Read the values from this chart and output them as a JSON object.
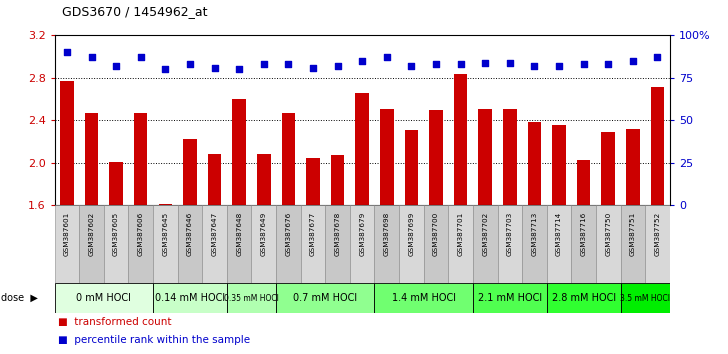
{
  "title": "GDS3670 / 1454962_at",
  "samples": [
    "GSM387601",
    "GSM387602",
    "GSM387605",
    "GSM387606",
    "GSM387645",
    "GSM387646",
    "GSM387647",
    "GSM387648",
    "GSM387649",
    "GSM387676",
    "GSM387677",
    "GSM387678",
    "GSM387679",
    "GSM387698",
    "GSM387699",
    "GSM387700",
    "GSM387701",
    "GSM387702",
    "GSM387703",
    "GSM387713",
    "GSM387714",
    "GSM387716",
    "GSM387750",
    "GSM387751",
    "GSM387752"
  ],
  "bar_values": [
    2.77,
    2.47,
    2.01,
    2.47,
    1.61,
    2.22,
    2.08,
    2.6,
    2.08,
    2.47,
    2.05,
    2.07,
    2.66,
    2.51,
    2.31,
    2.5,
    2.84,
    2.51,
    2.51,
    2.38,
    2.36,
    2.03,
    2.29,
    2.32,
    2.71
  ],
  "percentile_values": [
    90,
    87,
    82,
    87,
    80,
    83,
    81,
    80,
    83,
    83,
    81,
    82,
    85,
    87,
    82,
    83,
    83,
    84,
    84,
    82,
    82,
    83,
    83,
    85,
    87
  ],
  "dose_groups": [
    {
      "label": "0 mM HOCl",
      "start": 0,
      "end": 4,
      "color": "#e0ffe0"
    },
    {
      "label": "0.14 mM HOCl",
      "start": 4,
      "end": 7,
      "color": "#c8ffc8"
    },
    {
      "label": "0.35 mM HOCl",
      "start": 7,
      "end": 9,
      "color": "#b0ffb0"
    },
    {
      "label": "0.7 mM HOCl",
      "start": 9,
      "end": 13,
      "color": "#90ff90"
    },
    {
      "label": "1.4 mM HOCl",
      "start": 13,
      "end": 17,
      "color": "#70ff70"
    },
    {
      "label": "2.1 mM HOCl",
      "start": 17,
      "end": 20,
      "color": "#50ff50"
    },
    {
      "label": "2.8 mM HOCl",
      "start": 20,
      "end": 23,
      "color": "#30ff30"
    },
    {
      "label": "3.5 mM HOCl",
      "start": 23,
      "end": 25,
      "color": "#00ee00"
    }
  ],
  "ymin": 1.6,
  "ymax": 3.2,
  "ylim_left": [
    1.6,
    3.2
  ],
  "ylim_right": [
    0,
    100
  ],
  "yticks_left": [
    1.6,
    2.0,
    2.4,
    2.8,
    3.2
  ],
  "yticks_right": [
    0,
    25,
    50,
    75,
    100
  ],
  "ytick_labels_right": [
    "0",
    "25",
    "50",
    "75",
    "100%"
  ],
  "bar_color": "#cc0000",
  "dot_color": "#0000cc",
  "bg_color": "#ffffff",
  "grid_color": "#000000",
  "ylabel_left_color": "#cc0000",
  "ylabel_right_color": "#0000cc",
  "legend_bar_label": "transformed count",
  "legend_dot_label": "percentile rank within the sample"
}
